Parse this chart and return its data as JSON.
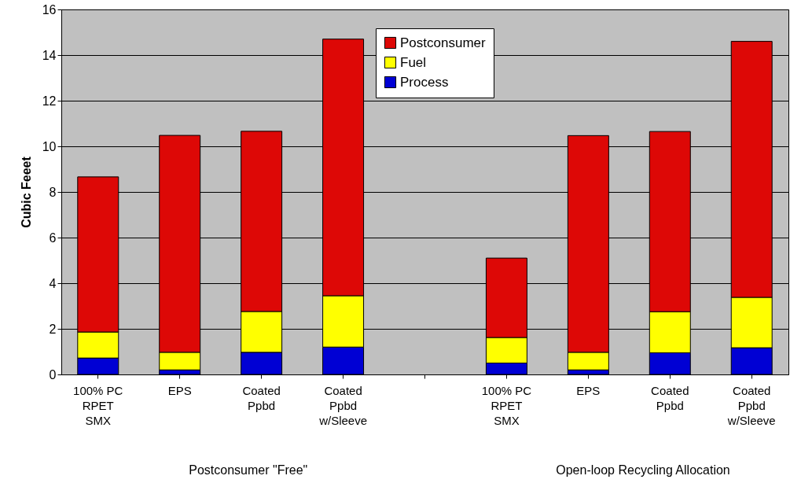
{
  "chart_data": {
    "type": "bar",
    "ylabel": "Cubic Feeet",
    "stacked": true,
    "grid": "y",
    "legend": "top",
    "categories": [
      "100% PC\nRPET\nSMX",
      "EPS",
      "Coated\nPpbd",
      "Coated\nPpbd\nw/Sleeve",
      null,
      "100% PC\nRPET\nSMX",
      "EPS",
      "Coated\nPpbd",
      "Coated\nPpbd\nw/Sleeve"
    ],
    "series": [
      {
        "name": "Process",
        "color": "#0000d4",
        "values": [
          0.72,
          0.2,
          0.97,
          1.2,
          null,
          0.5,
          0.2,
          0.95,
          1.17
        ]
      },
      {
        "name": "Fuel",
        "color": "#ffff00",
        "values": [
          1.14,
          0.77,
          1.79,
          2.25,
          null,
          1.12,
          0.77,
          1.8,
          2.21
        ]
      },
      {
        "name": "Postconsumer",
        "color": "#dd0806",
        "values": [
          6.8,
          9.51,
          7.9,
          11.25,
          null,
          3.48,
          9.5,
          7.9,
          11.22
        ]
      }
    ],
    "ylim": [
      0,
      16
    ],
    "yticks": [
      0,
      2,
      4,
      6,
      8,
      10,
      12,
      14,
      16
    ],
    "annotations": [
      "Postconsumer \"Free\"",
      "Open-loop Recycling Allocation"
    ]
  }
}
